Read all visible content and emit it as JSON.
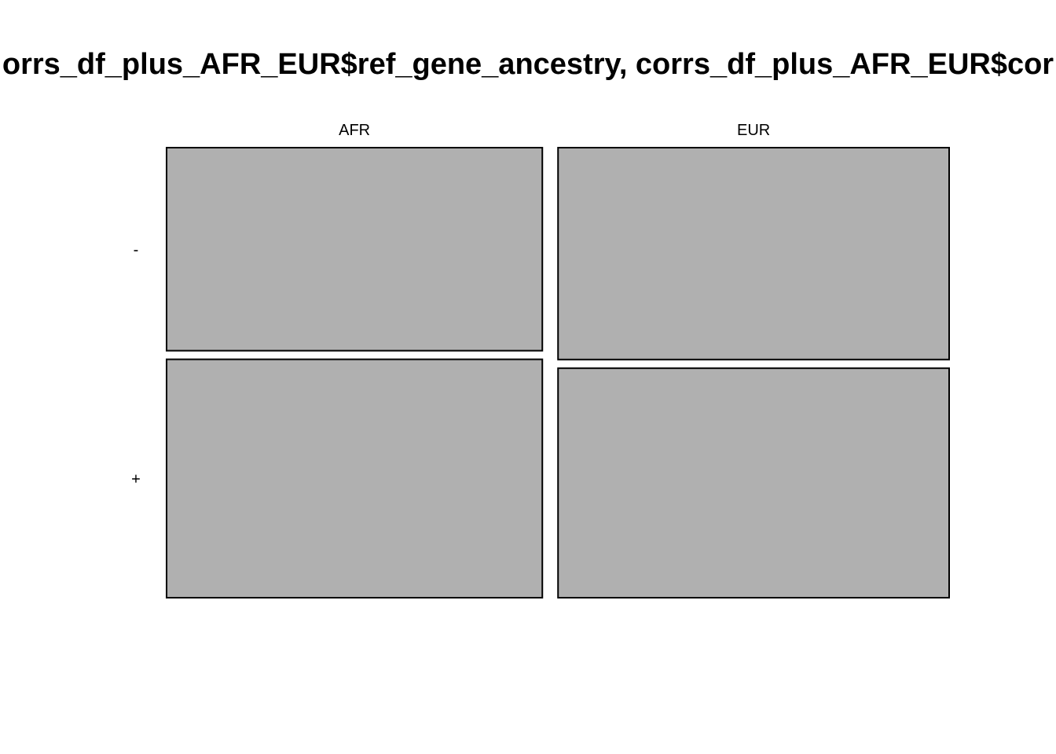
{
  "chart_data": {
    "type": "mosaic",
    "title": "orrs_df_plus_AFR_EUR$ref_gene_ancestry, corrs_df_plus_AFR_EUR$cor",
    "xlabel": "",
    "ylabel": "",
    "columns": [
      {
        "label": "AFR",
        "proportion": 0.49
      },
      {
        "label": "EUR",
        "proportion": 0.51
      }
    ],
    "rows": [
      "-",
      "+"
    ],
    "conditional_proportions": {
      "AFR": {
        "-": 0.46,
        "+": 0.54
      },
      "EUR": {
        "-": 0.48,
        "+": 0.52
      }
    },
    "fill_color": "#b0b0b0",
    "border_color": "#000000",
    "grid": false,
    "legend": "none"
  }
}
